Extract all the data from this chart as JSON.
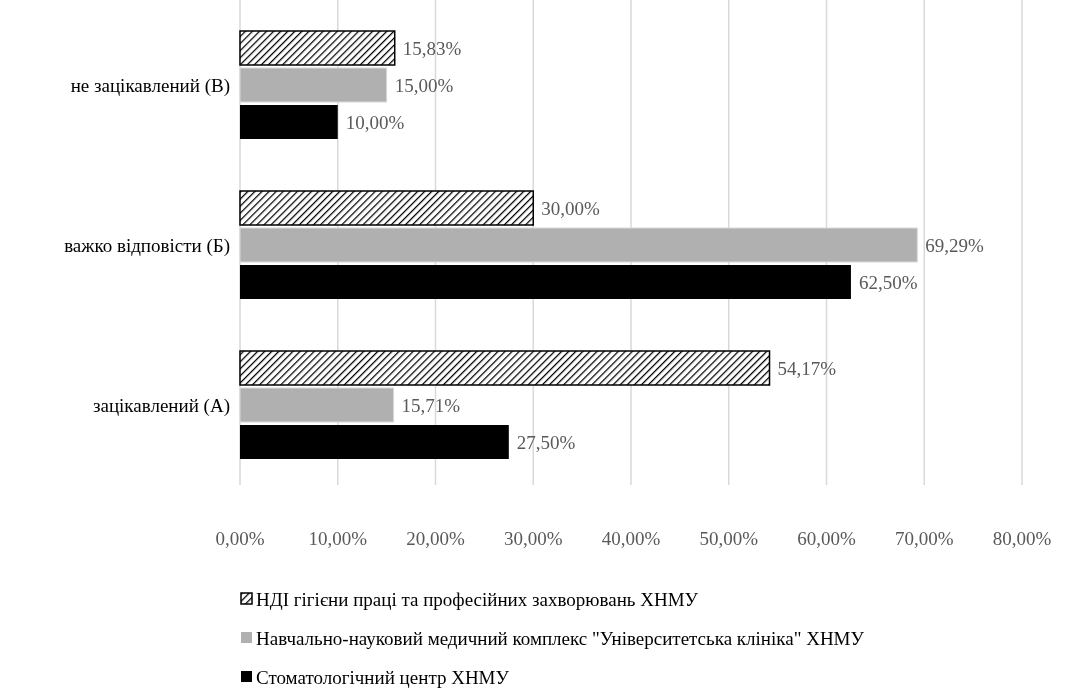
{
  "chart_data": {
    "type": "bar",
    "orientation": "horizontal",
    "categories": [
      "не зацікавлений (В)",
      "важко відповісти (Б)",
      "зацікавлений (А)"
    ],
    "series": [
      {
        "name": "НДІ гігієни праці та професійних захворювань ХНМУ",
        "color": "#000000",
        "values": [
          15.83,
          30.0,
          54.17
        ],
        "value_labels": [
          "15,83%",
          "30,00%",
          "54,17%"
        ]
      },
      {
        "name": "Навчально-науковий медичний комплекс \"Університетська клініка\" ХНМУ",
        "color": "#b0b0b0",
        "values": [
          15.0,
          69.29,
          15.71
        ],
        "value_labels": [
          "15,00%",
          "69,29%",
          "15,71%"
        ]
      },
      {
        "name": "Стоматологічний центр ХНМУ",
        "color": "#000000",
        "values": [
          10.0,
          62.5,
          27.5
        ],
        "value_labels": [
          "10,00%",
          "62,50%",
          "27,50%"
        ]
      }
    ],
    "xlim": [
      0,
      80
    ],
    "xticks": [
      {
        "value": 0,
        "label": "0,00%"
      },
      {
        "value": 10,
        "label": "10,00%"
      },
      {
        "value": 20,
        "label": "20,00%"
      },
      {
        "value": 30,
        "label": "30,00%"
      },
      {
        "value": 40,
        "label": "40,00%"
      },
      {
        "value": 50,
        "label": "50,00%"
      },
      {
        "value": 60,
        "label": "60,00%"
      },
      {
        "value": 70,
        "label": "70,00%"
      },
      {
        "value": 80,
        "label": "80,00%"
      }
    ],
    "grid": "x",
    "legend": "bottom"
  }
}
